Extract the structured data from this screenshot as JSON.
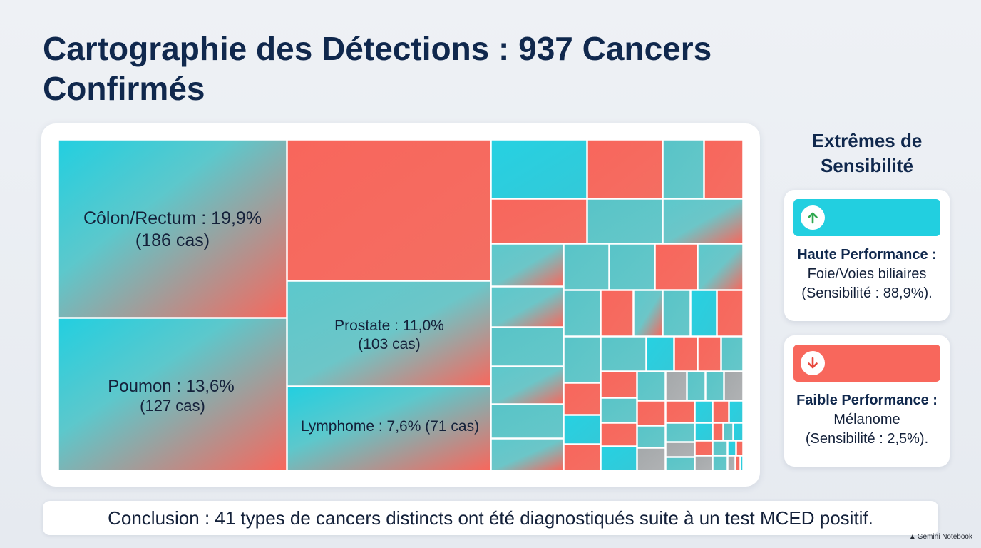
{
  "title": "Cartographie des Détections : 937 Cancers Confirmés",
  "colors": {
    "cyan": "#22cfe0",
    "coral": "#f8675c",
    "gray": "#a8aaac",
    "title_navy": "#10284d"
  },
  "chart_data": {
    "type": "treemap",
    "total_cases": 937,
    "labeled_categories": [
      {
        "name": "Côlon/Rectum",
        "percent": 19.9,
        "cases": 186,
        "label_line1": "Côlon/Rectum : 19,9%",
        "label_line2": "(186 cas)"
      },
      {
        "name": "Poumon",
        "percent": 13.6,
        "cases": 127,
        "label_line1": "Poumon : 13,6%",
        "label_line2": "(127 cas)"
      },
      {
        "name": "Prostate",
        "percent": 11.0,
        "cases": 103,
        "label_line1": "Prostate : 11,0%",
        "label_line2": "(103 cas)"
      },
      {
        "name": "Lymphome",
        "percent": 7.6,
        "cases": 71,
        "label_line1": "Lymphome : 7,6% (71 cas)",
        "label_line2": ""
      }
    ],
    "unlabeled_categories_note": "",
    "distinct_types": 41
  },
  "sidebar": {
    "title": "Extrêmes de Sensibilité",
    "high": {
      "icon": "arrow-up-icon",
      "heading": "Haute Performance :",
      "line1": "Foie/Voies biliaires",
      "line2": "(Sensibilité : 88,9%).",
      "cancer": "Foie/Voies biliaires",
      "sensitivity_percent": 88.9
    },
    "low": {
      "icon": "arrow-down-icon",
      "heading": "Faible Performance :",
      "line1": "Mélanome",
      "line2": "(Sensibilité : 2,5%).",
      "cancer": "Mélanome",
      "sensitivity_percent": 2.5
    }
  },
  "conclusion": "Conclusion : 41 types de cancers distincts ont été diagnostiqués suite à un test MCED positif.",
  "watermark": "Gemini Notebook"
}
